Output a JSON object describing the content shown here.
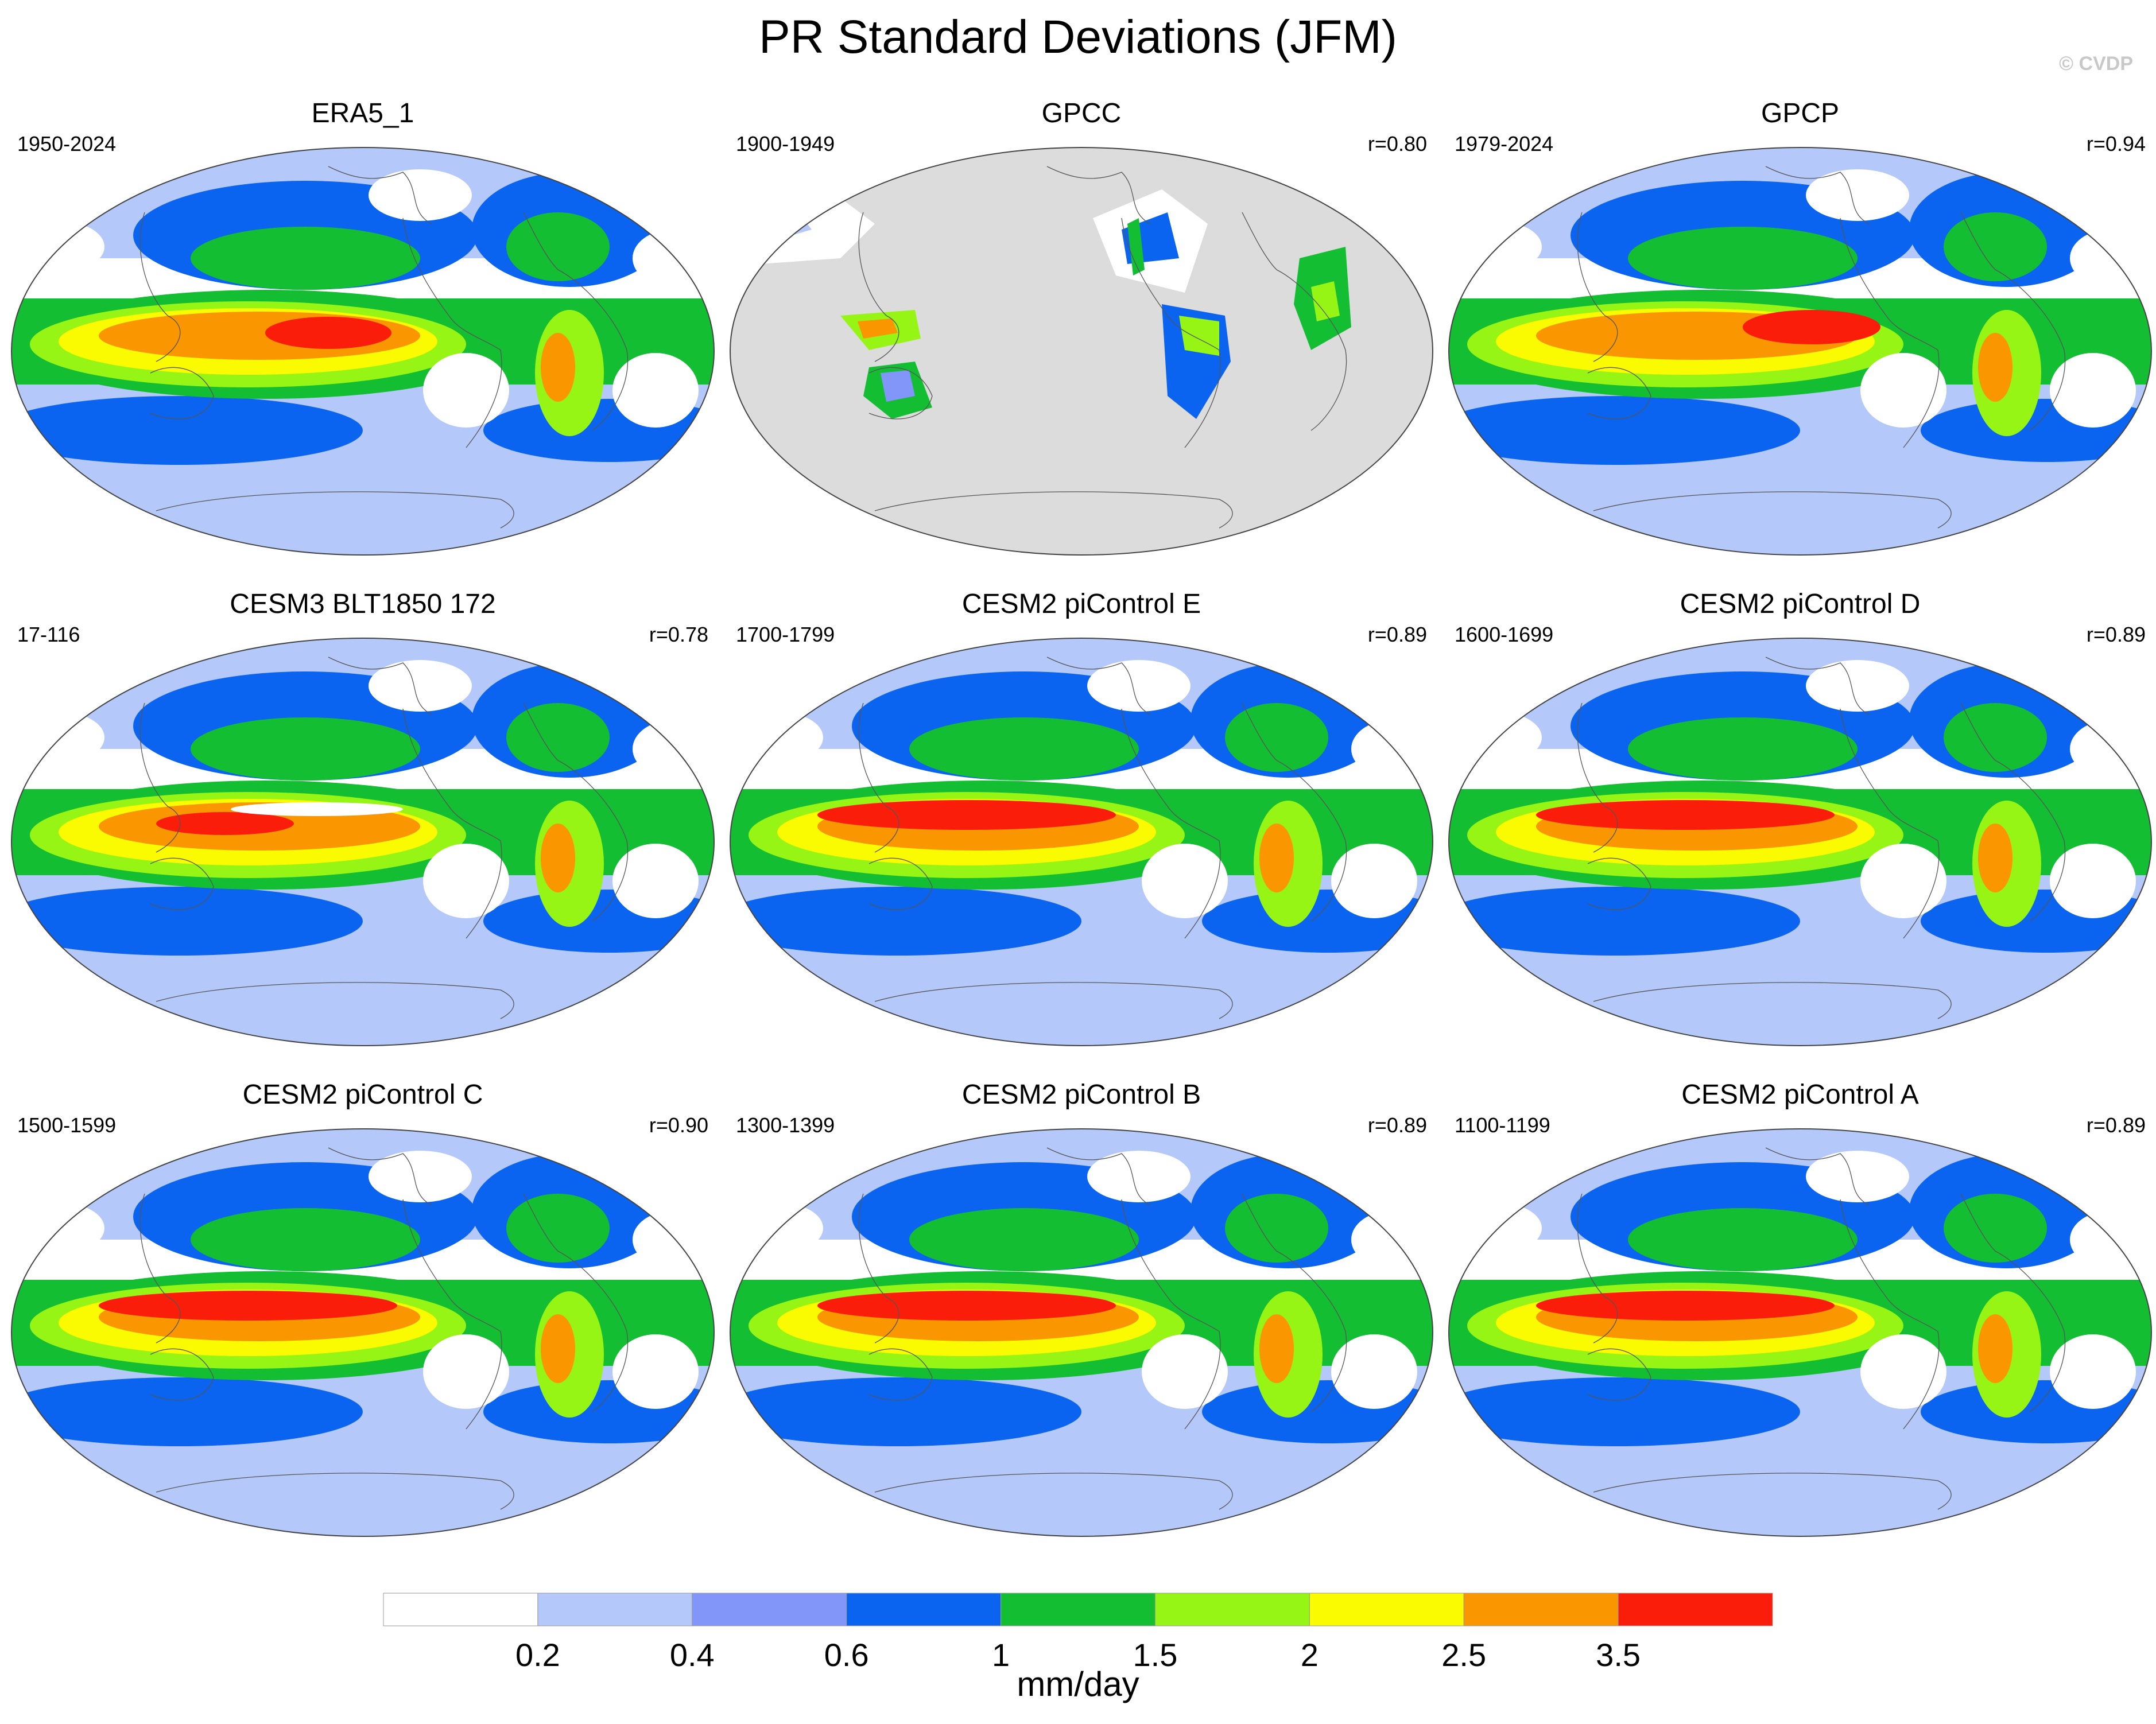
{
  "figure": {
    "title": "PR Standard Deviations (JFM)",
    "copyright": "© CVDP",
    "colorbar_unit": "mm/day"
  },
  "chart_data": {
    "type": "heatmap",
    "title": "PR Standard Deviations (JFM)",
    "variable": "precipitation standard deviation",
    "units": "mm/day",
    "colorbar": {
      "levels": [
        "0.2",
        "0.4",
        "0.6",
        "1",
        "1.5",
        "2",
        "2.5",
        "3.5"
      ],
      "colors": [
        "#ffffff",
        "#b4c8fa",
        "#8296fa",
        "#0a64f0",
        "#14be32",
        "#96f514",
        "#fafa00",
        "#fa9600",
        "#fa1e0a"
      ]
    },
    "land_mask_color": "#dcdcdc",
    "panels": [
      {
        "name": "ERA5_1",
        "period": "1950-2024",
        "r": "",
        "variant": "era5"
      },
      {
        "name": "GPCC",
        "period": "1900-1949",
        "r": "r=0.80",
        "variant": "gpcc"
      },
      {
        "name": "GPCP",
        "period": "1979-2024",
        "r": "r=0.94",
        "variant": "gpcp"
      },
      {
        "name": "CESM3 BLT1850 172",
        "period": "17-116",
        "r": "r=0.78",
        "variant": "cesm3"
      },
      {
        "name": "CESM2 piControl E",
        "period": "1700-1799",
        "r": "r=0.89",
        "variant": "cesm2"
      },
      {
        "name": "CESM2 piControl D",
        "period": "1600-1699",
        "r": "r=0.89",
        "variant": "cesm2"
      },
      {
        "name": "CESM2 piControl C",
        "period": "1500-1599",
        "r": "r=0.90",
        "variant": "cesm2"
      },
      {
        "name": "CESM2 piControl B",
        "period": "1300-1399",
        "r": "r=0.89",
        "variant": "cesm2"
      },
      {
        "name": "CESM2 piControl A",
        "period": "1100-1199",
        "r": "r=0.89",
        "variant": "cesm2"
      }
    ]
  }
}
